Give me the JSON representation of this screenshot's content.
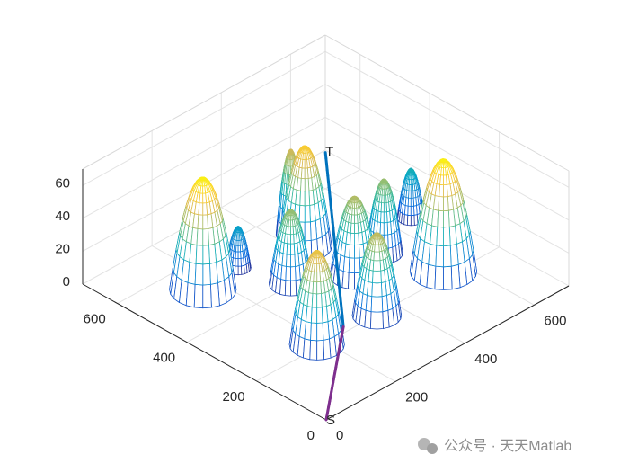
{
  "chart_data": {
    "type": "surface3d",
    "xlim": [
      0,
      700
    ],
    "ylim": [
      0,
      700
    ],
    "zlim": [
      0,
      70
    ],
    "xticks": [
      0,
      200,
      400,
      600
    ],
    "yticks": [
      0,
      200,
      400,
      600
    ],
    "zticks": [
      0,
      20,
      40,
      60
    ],
    "grid": true,
    "colormap": "parula",
    "obstacles": [
      {
        "x": 160,
        "y": 514,
        "r": 68,
        "h": 68
      },
      {
        "x": 268,
        "y": 520,
        "r": 26,
        "h": 25
      },
      {
        "x": 420,
        "y": 480,
        "r": 55,
        "h": 61
      },
      {
        "x": 430,
        "y": 530,
        "r": 30,
        "h": 52
      },
      {
        "x": 302,
        "y": 403,
        "r": 44,
        "h": 45
      },
      {
        "x": 416,
        "y": 333,
        "r": 50,
        "h": 48
      },
      {
        "x": 517,
        "y": 349,
        "r": 38,
        "h": 45
      },
      {
        "x": 648,
        "y": 402,
        "r": 28,
        "h": 30
      },
      {
        "x": 556,
        "y": 217,
        "r": 68,
        "h": 68
      },
      {
        "x": 345,
        "y": 198,
        "r": 50,
        "h": 50
      },
      {
        "x": 182,
        "y": 208,
        "r": 56,
        "h": 57
      }
    ],
    "path": {
      "x": [
        0,
        160,
        600
      ],
      "y": [
        0,
        110,
        600
      ],
      "z": [
        0,
        25,
        22
      ],
      "colors": [
        "#7e2f8e",
        "#0072bd"
      ]
    },
    "labels": {
      "start": "S",
      "end": "T"
    },
    "watermark": "公众号 · 天天Matlab"
  }
}
